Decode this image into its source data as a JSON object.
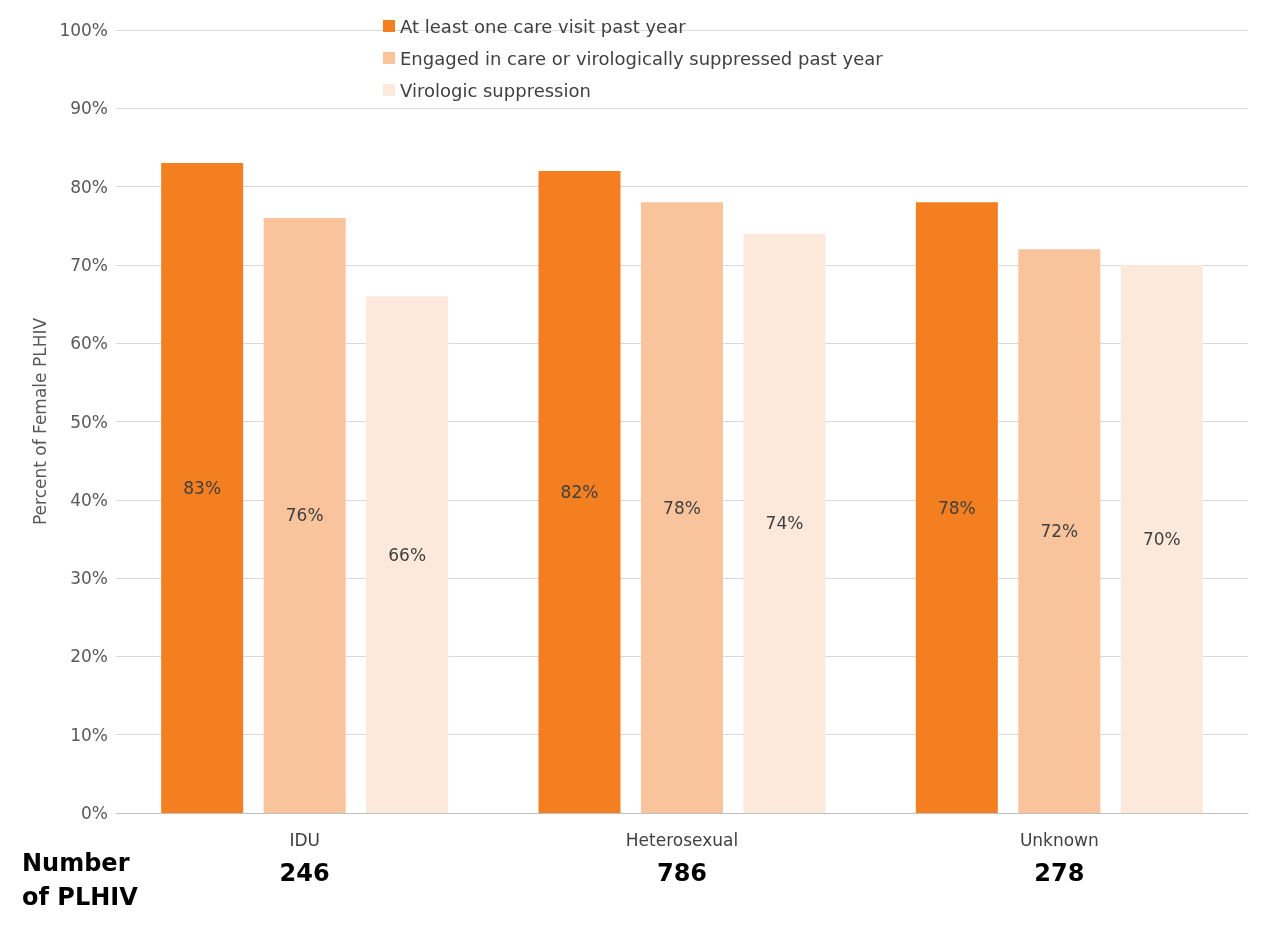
{
  "chart_data": {
    "type": "bar",
    "ylabel": "Percent of Female PLHIV",
    "categories": [
      "IDU",
      "Heterosexual",
      "Unknown"
    ],
    "series": [
      {
        "name": "At least one care visit past year",
        "color": "#f47f20",
        "values": [
          83,
          82,
          78
        ],
        "value_labels": [
          "83%",
          "82%",
          "78%"
        ]
      },
      {
        "name": "Engaged in care or virologically suppressed past year",
        "color": "#f9c39c",
        "values": [
          76,
          78,
          72
        ],
        "value_labels": [
          "76%",
          "78%",
          "72%"
        ]
      },
      {
        "name": "Virologic suppression",
        "color": "#fde9dc",
        "values": [
          66,
          74,
          70
        ],
        "value_labels": [
          "66%",
          "74%",
          "70%"
        ]
      }
    ],
    "ylim": [
      0,
      100
    ],
    "yticks": [
      {
        "value": 0,
        "label": "0%"
      },
      {
        "value": 10,
        "label": "10%"
      },
      {
        "value": 20,
        "label": "20%"
      },
      {
        "value": 30,
        "label": "30%"
      },
      {
        "value": 40,
        "label": "40%"
      },
      {
        "value": 50,
        "label": "50%"
      },
      {
        "value": 60,
        "label": "60%"
      },
      {
        "value": 70,
        "label": "70%"
      },
      {
        "value": 80,
        "label": "80%"
      },
      {
        "value": 90,
        "label": "90%"
      },
      {
        "value": 100,
        "label": "100%"
      }
    ],
    "grid": "y",
    "legend": "top",
    "annotations": [
      "Number\nof PLHIV",
      "246",
      "786",
      "278"
    ]
  }
}
